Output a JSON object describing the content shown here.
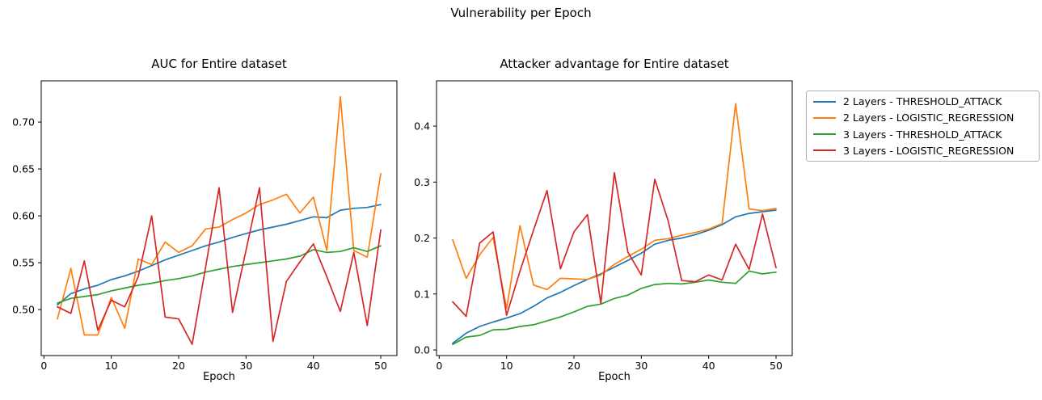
{
  "suptitle": "Vulnerability per Epoch",
  "colors": {
    "blue": "#1f77b4",
    "orange": "#ff7f0e",
    "green": "#2ca02c",
    "red": "#d62728"
  },
  "legend": {
    "entries": [
      {
        "label": "2 Layers - THRESHOLD_ATTACK",
        "color": "#1f77b4"
      },
      {
        "label": "2 Layers - LOGISTIC_REGRESSION",
        "color": "#ff7f0e"
      },
      {
        "label": "3 Layers - THRESHOLD_ATTACK",
        "color": "#2ca02c"
      },
      {
        "label": "3 Layers - LOGISTIC_REGRESSION",
        "color": "#d62728"
      }
    ]
  },
  "chart_data": [
    {
      "type": "line",
      "title": "AUC for Entire dataset",
      "xlabel": "Epoch",
      "ylabel": "",
      "grid": false,
      "legend_position": "outside-right-of-second-plot",
      "x": [
        2,
        4,
        6,
        8,
        10,
        12,
        14,
        16,
        18,
        20,
        22,
        24,
        26,
        28,
        30,
        32,
        34,
        36,
        38,
        40,
        42,
        44,
        46,
        48,
        50
      ],
      "xlim": [
        -0.4,
        52.4
      ],
      "ylim": [
        0.451,
        0.744
      ],
      "xtick_values": [
        0,
        10,
        20,
        30,
        40,
        50
      ],
      "xticks": [
        "0",
        "10",
        "20",
        "30",
        "40",
        "50"
      ],
      "ytick_values": [
        0.5,
        0.55,
        0.6,
        0.65,
        0.7
      ],
      "yticks": [
        "0.50",
        "0.55",
        "0.60",
        "0.65",
        "0.70"
      ],
      "series": [
        {
          "name": "2 Layers - THRESHOLD_ATTACK",
          "color": "#1f77b4",
          "values": [
            0.505,
            0.517,
            0.522,
            0.526,
            0.532,
            0.536,
            0.541,
            0.547,
            0.553,
            0.558,
            0.563,
            0.568,
            0.572,
            0.577,
            0.581,
            0.585,
            0.588,
            0.591,
            0.595,
            0.599,
            0.598,
            0.606,
            0.608,
            0.609,
            0.612
          ]
        },
        {
          "name": "2 Layers - LOGISTIC_REGRESSION",
          "color": "#ff7f0e",
          "values": [
            0.49,
            0.544,
            0.473,
            0.473,
            0.513,
            0.48,
            0.554,
            0.548,
            0.572,
            0.561,
            0.568,
            0.586,
            0.588,
            0.596,
            0.603,
            0.612,
            0.617,
            0.623,
            0.603,
            0.62,
            0.563,
            0.727,
            0.563,
            0.556,
            0.645
          ]
        },
        {
          "name": "3 Layers - THRESHOLD_ATTACK",
          "color": "#2ca02c",
          "values": [
            0.507,
            0.512,
            0.514,
            0.516,
            0.52,
            0.523,
            0.526,
            0.528,
            0.531,
            0.533,
            0.536,
            0.54,
            0.543,
            0.546,
            0.548,
            0.55,
            0.552,
            0.554,
            0.557,
            0.564,
            0.561,
            0.562,
            0.566,
            0.562,
            0.568
          ]
        },
        {
          "name": "3 Layers - LOGISTIC_REGRESSION",
          "color": "#d62728",
          "values": [
            0.503,
            0.496,
            0.552,
            0.478,
            0.51,
            0.503,
            0.535,
            0.6,
            0.492,
            0.49,
            0.463,
            0.545,
            0.63,
            0.497,
            0.563,
            0.63,
            0.466,
            0.53,
            0.551,
            0.57,
            0.535,
            0.498,
            0.561,
            0.483,
            0.585
          ]
        }
      ]
    },
    {
      "type": "line",
      "title": "Attacker advantage for Entire dataset",
      "xlabel": "Epoch",
      "ylabel": "",
      "grid": false,
      "x": [
        2,
        4,
        6,
        8,
        10,
        12,
        14,
        16,
        18,
        20,
        22,
        24,
        26,
        28,
        30,
        32,
        34,
        36,
        38,
        40,
        42,
        44,
        46,
        48,
        50
      ],
      "xlim": [
        -0.4,
        52.4
      ],
      "ylim": [
        -0.01,
        0.481
      ],
      "xtick_values": [
        0,
        10,
        20,
        30,
        40,
        50
      ],
      "xticks": [
        "0",
        "10",
        "20",
        "30",
        "40",
        "50"
      ],
      "ytick_values": [
        0.0,
        0.1,
        0.2,
        0.3,
        0.4
      ],
      "yticks": [
        "0.0",
        "0.1",
        "0.2",
        "0.3",
        "0.4"
      ],
      "series": [
        {
          "name": "2 Layers - THRESHOLD_ATTACK",
          "color": "#1f77b4",
          "values": [
            0.012,
            0.03,
            0.042,
            0.05,
            0.057,
            0.065,
            0.078,
            0.093,
            0.103,
            0.115,
            0.126,
            0.136,
            0.148,
            0.16,
            0.173,
            0.189,
            0.196,
            0.2,
            0.206,
            0.214,
            0.224,
            0.238,
            0.244,
            0.247,
            0.25
          ]
        },
        {
          "name": "2 Layers - LOGISTIC_REGRESSION",
          "color": "#ff7f0e",
          "values": [
            0.197,
            0.128,
            0.17,
            0.201,
            0.074,
            0.222,
            0.116,
            0.108,
            0.128,
            0.127,
            0.126,
            0.134,
            0.153,
            0.167,
            0.18,
            0.196,
            0.199,
            0.205,
            0.21,
            0.216,
            0.226,
            0.44,
            0.252,
            0.249,
            0.253
          ]
        },
        {
          "name": "3 Layers - THRESHOLD_ATTACK",
          "color": "#2ca02c",
          "values": [
            0.01,
            0.023,
            0.026,
            0.036,
            0.037,
            0.042,
            0.045,
            0.052,
            0.059,
            0.068,
            0.078,
            0.082,
            0.092,
            0.098,
            0.11,
            0.117,
            0.119,
            0.118,
            0.121,
            0.125,
            0.121,
            0.119,
            0.141,
            0.136,
            0.139
          ]
        },
        {
          "name": "3 Layers - LOGISTIC_REGRESSION",
          "color": "#d62728",
          "values": [
            0.086,
            0.06,
            0.191,
            0.211,
            0.062,
            0.141,
            0.214,
            0.285,
            0.145,
            0.211,
            0.242,
            0.083,
            0.317,
            0.175,
            0.134,
            0.305,
            0.23,
            0.124,
            0.122,
            0.134,
            0.125,
            0.189,
            0.144,
            0.243,
            0.147
          ]
        }
      ]
    }
  ]
}
